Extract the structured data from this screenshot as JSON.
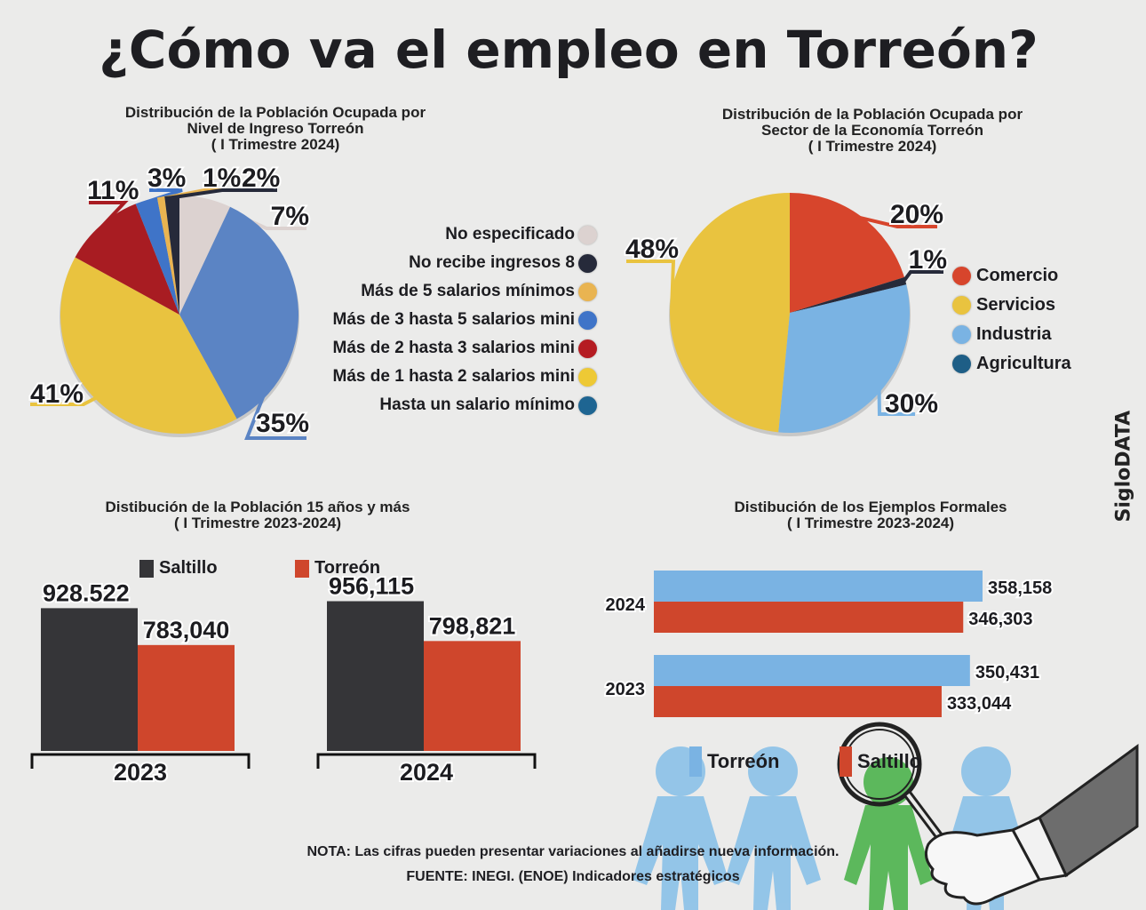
{
  "title": "¿Cómo va el empleo en Torreón?",
  "brand": "SigloDATA",
  "colors": {
    "background": "#ebebea",
    "income_pie": [
      "#dcd2d0",
      "#262a3a",
      "#e9b451",
      "#5b84c4",
      "#a81c22",
      "#e9c33f",
      "#1e6592"
    ],
    "sector_pie": [
      "#d7452c",
      "#e9c33f",
      "#7ab3e3",
      "#1e5e86"
    ],
    "saltillo_dark": "#353538",
    "torreon_red": "#cf462c",
    "torreon_blue": "#7ab3e3"
  },
  "chart_data": [
    {
      "type": "pie",
      "title_lines": [
        "Distribución de la Población Ocupada por",
        "Nivel de Ingreso Torreón",
        "( I Trimestre 2024)"
      ],
      "legend": [
        "No especificado",
        "No recibe ingresos 8",
        "Más de 5 salarios mínimos",
        "Más de 3 hasta 5 salarios mini",
        "Más de 2 hasta 3 salarios mini",
        "Más de 1 hasta 2 salarios mini",
        "Hasta un salario mínimo"
      ],
      "legend_placement": "right",
      "slices": [
        {
          "name": "No especificado",
          "value": 7,
          "label": "7%"
        },
        {
          "name": "Más de 3 hasta 5 salarios mini",
          "value": 35,
          "label": "35%"
        },
        {
          "name": "Más de 1 hasta 2 salarios mini",
          "value": 41,
          "label": "41%"
        },
        {
          "name": "Más de 2 hasta 3 salarios mini",
          "value": 11,
          "label": "11%"
        },
        {
          "name": "Hasta un salario mínimo",
          "value": 3,
          "label": "3%"
        },
        {
          "name": "Más de 5 salarios mínimos",
          "value": 1,
          "label": "1%"
        },
        {
          "name": "No recibe ingresos 8",
          "value": 2,
          "label": "2%"
        }
      ]
    },
    {
      "type": "pie",
      "title_lines": [
        "Distribución de la Población Ocupada por",
        "Sector de la Economía  Torreón",
        "( I Trimestre 2024)"
      ],
      "legend": [
        "Comercio",
        "Servicios",
        "Industria",
        "Agricultura"
      ],
      "legend_placement": "right",
      "slices": [
        {
          "name": "Comercio",
          "value": 20,
          "label": "20%"
        },
        {
          "name": "Agricultura",
          "value": 1,
          "label": "1%"
        },
        {
          "name": "Industria",
          "value": 30,
          "label": "30%"
        },
        {
          "name": "Servicios",
          "value": 48,
          "label": "48%"
        }
      ]
    },
    {
      "type": "bar",
      "title_lines": [
        "Distibución de la Población 15 años y más",
        "( I Trimestre 2023-2024)"
      ],
      "categories": [
        "2023",
        "2024"
      ],
      "series": [
        {
          "name": "Saltillo",
          "values": [
            928522,
            956115
          ],
          "labels": [
            "928.522",
            "956,115"
          ]
        },
        {
          "name": "Torreón",
          "values": [
            783040,
            798821
          ],
          "labels": [
            "783,040",
            "798,821"
          ]
        }
      ],
      "legend_placement": "top",
      "ylim": [
        0,
        1000000
      ]
    },
    {
      "type": "bar",
      "orientation": "horizontal",
      "title_lines": [
        "Distibución de los Ejemplos Formales",
        "( I Trimestre 2023-2024)"
      ],
      "categories": [
        "2024",
        "2023"
      ],
      "series": [
        {
          "name": "Torreón",
          "values": [
            358158,
            350431
          ],
          "labels": [
            "358,158",
            "350,431"
          ]
        },
        {
          "name": "Saltillo",
          "values": [
            346303,
            333044
          ],
          "labels": [
            "346,303",
            "333,044"
          ]
        }
      ],
      "legend": [
        "Torreón",
        "Saltillo"
      ],
      "legend_placement": "bottom"
    }
  ],
  "footer": {
    "note": "NOTA: Las cifras pueden presentar variaciones al añadirse nueva información.",
    "source": "FUENTE: INEGI. (ENOE) Indicadores estratégicos"
  }
}
